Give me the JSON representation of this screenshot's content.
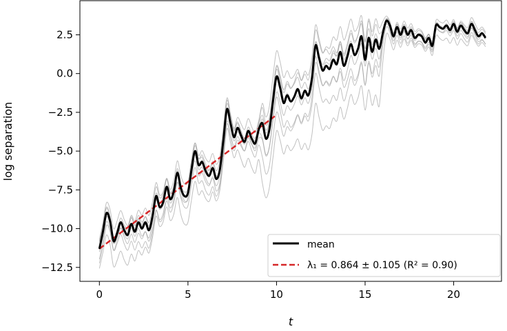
{
  "chart_data": {
    "type": "line",
    "xlabel": "t",
    "ylabel": "log separation",
    "xlim": [
      -1.1,
      22.7
    ],
    "ylim": [
      -13.4,
      4.7
    ],
    "xticks": [
      0,
      5,
      10,
      15,
      20
    ],
    "yticks": [
      -12.5,
      -10.0,
      -7.5,
      -5.0,
      -2.5,
      0.0,
      2.5
    ],
    "xtick_labels": [
      "0",
      "5",
      "10",
      "15",
      "20"
    ],
    "ytick_labels": [
      "−12.5",
      "−10.0",
      "−7.5",
      "−5.0",
      "−2.5",
      "0.0",
      "2.5"
    ],
    "grid": false,
    "legend_position": "lower-right",
    "legend": {
      "mean_label": "mean",
      "fit_label": "λ₁ = 0.864 ± 0.105  (R² = 0.90)"
    },
    "colors": {
      "mean": "#000000",
      "fit": "#d62728",
      "trajectories": "#9e9e9e"
    },
    "series": [
      {
        "name": "mean",
        "x": [
          0.0,
          0.2,
          0.4,
          0.6,
          0.8,
          1.0,
          1.2,
          1.4,
          1.6,
          1.8,
          2.0,
          2.2,
          2.4,
          2.6,
          2.8,
          3.0,
          3.2,
          3.4,
          3.6,
          3.8,
          4.0,
          4.2,
          4.4,
          4.6,
          4.8,
          5.0,
          5.2,
          5.4,
          5.6,
          5.8,
          6.0,
          6.2,
          6.4,
          6.6,
          6.8,
          7.0,
          7.2,
          7.4,
          7.6,
          7.8,
          8.0,
          8.2,
          8.4,
          8.6,
          8.8,
          9.0,
          9.2,
          9.4,
          9.6,
          9.8,
          10.0,
          10.2,
          10.4,
          10.6,
          10.8,
          11.0,
          11.2,
          11.4,
          11.6,
          11.8,
          12.0,
          12.2,
          12.4,
          12.6,
          12.8,
          13.0,
          13.2,
          13.4,
          13.6,
          13.8,
          14.0,
          14.2,
          14.4,
          14.6,
          14.8,
          15.0,
          15.2,
          15.4,
          15.6,
          15.8,
          16.0,
          16.2,
          16.4,
          16.6,
          16.8,
          17.0,
          17.2,
          17.4,
          17.6,
          17.8,
          18.0,
          18.2,
          18.4,
          18.6,
          18.8,
          19.0,
          19.2,
          19.4,
          19.6,
          19.8,
          20.0,
          20.2,
          20.4,
          20.6,
          20.8,
          21.0,
          21.2,
          21.4,
          21.6,
          21.8
        ],
        "y": [
          -11.3,
          -10.2,
          -9.0,
          -9.5,
          -10.8,
          -10.3,
          -9.6,
          -10.1,
          -10.4,
          -9.7,
          -10.2,
          -9.6,
          -10.0,
          -9.6,
          -10.1,
          -9.2,
          -7.9,
          -8.6,
          -8.3,
          -7.3,
          -8.1,
          -7.6,
          -6.4,
          -7.4,
          -7.9,
          -7.7,
          -6.2,
          -5.0,
          -5.9,
          -5.7,
          -6.3,
          -6.6,
          -6.1,
          -6.8,
          -6.2,
          -4.3,
          -2.3,
          -3.2,
          -4.1,
          -3.5,
          -4.0,
          -4.4,
          -3.7,
          -4.2,
          -4.5,
          -3.6,
          -3.2,
          -4.2,
          -3.6,
          -1.8,
          -0.2,
          -0.9,
          -1.9,
          -1.4,
          -1.8,
          -1.5,
          -1.0,
          -1.6,
          -1.1,
          -1.4,
          -0.3,
          1.8,
          1.0,
          0.2,
          0.5,
          0.3,
          0.9,
          0.6,
          1.4,
          0.5,
          1.1,
          1.9,
          1.2,
          1.6,
          2.4,
          0.9,
          2.3,
          1.4,
          2.2,
          1.6,
          2.6,
          3.4,
          3.1,
          2.4,
          3.0,
          2.5,
          3.0,
          2.5,
          2.8,
          2.3,
          2.5,
          2.4,
          2.0,
          2.3,
          1.8,
          3.1,
          3.0,
          2.9,
          3.1,
          2.8,
          3.2,
          2.7,
          3.1,
          2.8,
          2.6,
          3.2,
          2.8,
          2.4,
          2.6,
          2.3
        ]
      },
      {
        "name": "fit",
        "x": [
          0.0,
          9.9
        ],
        "y": [
          -11.3,
          -2.75
        ]
      }
    ]
  }
}
